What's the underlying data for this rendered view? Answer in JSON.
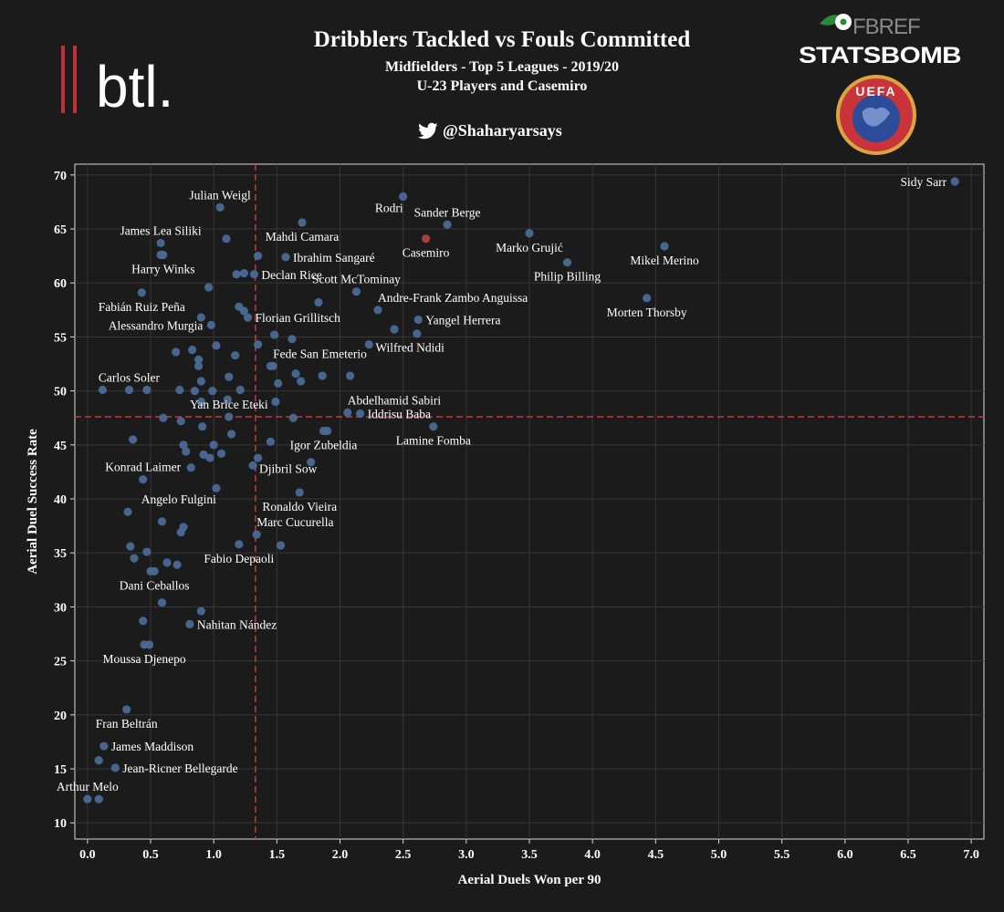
{
  "header": {
    "title": "Dribblers Tackled vs Fouls Committed",
    "subtitle1": "Midfielders - Top 5 Leagues - 2019/20",
    "subtitle2": "U-23 Players and Casemiro",
    "twitter_handle": "@Shaharyarsays"
  },
  "logos": {
    "btl": "btl.",
    "fbref": "FBREF",
    "statsbomb": "STATSBOMB",
    "uefa": "UEFA"
  },
  "colors": {
    "background": "#1b1b1b",
    "point": "#4a6a96",
    "highlight": "#b04040",
    "reference_line": "#b8383f",
    "grid": "#363636"
  },
  "chart_data": {
    "type": "scatter",
    "xlabel": "Aerial Duels Won per 90",
    "ylabel": "Aerial Duel Success Rate",
    "xlim": [
      -0.1,
      7.1
    ],
    "ylim": [
      8.5,
      71
    ],
    "xticks": [
      "0.0",
      "0.5",
      "1.0",
      "1.5",
      "2.0",
      "2.5",
      "3.0",
      "3.5",
      "4.0",
      "4.5",
      "5.0",
      "5.5",
      "6.0",
      "6.5",
      "7.0"
    ],
    "yticks": [
      "10",
      "15",
      "20",
      "25",
      "30",
      "35",
      "40",
      "45",
      "50",
      "55",
      "60",
      "65",
      "70"
    ],
    "grid": true,
    "reference_lines": {
      "x": 1.33,
      "y": 47.6
    },
    "labeled_points": [
      {
        "name": "Sidy Sarr",
        "x": 6.87,
        "y": 69.4,
        "label_pos": "left"
      },
      {
        "name": "Rodri",
        "x": 2.5,
        "y": 68.0,
        "label_pos": "below-left"
      },
      {
        "name": "Sander Berge",
        "x": 2.85,
        "y": 65.4,
        "label_pos": "above"
      },
      {
        "name": "Marko Grujić",
        "x": 3.5,
        "y": 64.6,
        "label_pos": "below"
      },
      {
        "name": "Julian Weigl",
        "x": 1.05,
        "y": 67.0,
        "label_pos": "above"
      },
      {
        "name": "James Lea Siliki",
        "x": 0.58,
        "y": 63.7,
        "label_pos": "above"
      },
      {
        "name": "Mahdi Camara",
        "x": 1.7,
        "y": 65.6,
        "label_pos": "below"
      },
      {
        "name": "Casemiro",
        "x": 2.68,
        "y": 64.1,
        "label_pos": "below",
        "highlight": true
      },
      {
        "name": "Mikel Merino",
        "x": 4.57,
        "y": 63.4,
        "label_pos": "below"
      },
      {
        "name": "Ibrahim Sangaré",
        "x": 1.57,
        "y": 62.4,
        "label_pos": "right"
      },
      {
        "name": "Philip Billing",
        "x": 3.8,
        "y": 61.9,
        "label_pos": "below"
      },
      {
        "name": "Harry Winks",
        "x": 0.6,
        "y": 62.6,
        "label_pos": "below"
      },
      {
        "name": "Declan Rice",
        "x": 1.32,
        "y": 60.8,
        "label_pos": "right"
      },
      {
        "name": "Scott McTominay",
        "x": 2.13,
        "y": 59.2,
        "label_pos": "above"
      },
      {
        "name": "Fabián Ruiz Peña",
        "x": 0.43,
        "y": 59.1,
        "label_pos": "below"
      },
      {
        "name": "Andre-Frank Zambo Anguissa",
        "x": 2.3,
        "y": 57.5,
        "label_pos": "above-right"
      },
      {
        "name": "Morten Thorsby",
        "x": 4.43,
        "y": 58.6,
        "label_pos": "below"
      },
      {
        "name": "Florian Grillitsch",
        "x": 1.27,
        "y": 56.8,
        "label_pos": "right"
      },
      {
        "name": "Yangel Herrera",
        "x": 2.62,
        "y": 56.6,
        "label_pos": "right"
      },
      {
        "name": "Alessandro Murgia",
        "x": 0.98,
        "y": 56.1,
        "label_pos": "left"
      },
      {
        "name": "Wilfred Ndidi",
        "x": 2.23,
        "y": 54.3,
        "label_pos": "below-right"
      },
      {
        "name": "Fede San Emeterio",
        "x": 1.47,
        "y": 52.3,
        "label_pos": "above-right"
      },
      {
        "name": "Carlos Soler",
        "x": 0.33,
        "y": 50.1,
        "label_pos": "above"
      },
      {
        "name": "Abdelhamid Sabiri",
        "x": 2.06,
        "y": 48.0,
        "label_pos": "above-right"
      },
      {
        "name": "Iddrisu Baba",
        "x": 2.16,
        "y": 47.9,
        "label_pos": "right"
      },
      {
        "name": "Yan Brice Eteki",
        "x": 1.12,
        "y": 47.6,
        "label_pos": "above"
      },
      {
        "name": "Lamine Fomba",
        "x": 2.74,
        "y": 46.7,
        "label_pos": "below"
      },
      {
        "name": "Igor Zubeldia",
        "x": 1.87,
        "y": 46.3,
        "label_pos": "below"
      },
      {
        "name": "Konrad Laimer",
        "x": 0.44,
        "y": 41.8,
        "label_pos": "above"
      },
      {
        "name": "Djibril Sow",
        "x": 1.31,
        "y": 43.1,
        "label_pos": "below-right"
      },
      {
        "name": "Angelo Fulgini",
        "x": 1.02,
        "y": 41.0,
        "label_pos": "below-left"
      },
      {
        "name": "Ronaldo Vieira",
        "x": 1.68,
        "y": 40.6,
        "label_pos": "below"
      },
      {
        "name": "Marc Cucurella",
        "x": 1.34,
        "y": 36.7,
        "label_pos": "above-right"
      },
      {
        "name": "Fabio Depaoli",
        "x": 1.2,
        "y": 35.8,
        "label_pos": "below"
      },
      {
        "name": "Dani Ceballos",
        "x": 0.53,
        "y": 33.3,
        "label_pos": "below"
      },
      {
        "name": "Nahitan Nández",
        "x": 0.81,
        "y": 28.4,
        "label_pos": "right"
      },
      {
        "name": "Moussa Djenepo",
        "x": 0.45,
        "y": 26.5,
        "label_pos": "below"
      },
      {
        "name": "Fran Beltrán",
        "x": 0.31,
        "y": 20.5,
        "label_pos": "below"
      },
      {
        "name": "James Maddison",
        "x": 0.13,
        "y": 17.1,
        "label_pos": "right"
      },
      {
        "name": "Jean-Ricner Bellegarde",
        "x": 0.22,
        "y": 15.1,
        "label_pos": "right"
      },
      {
        "name": "Arthur Melo",
        "x": 0.0,
        "y": 12.2,
        "label_pos": "above"
      }
    ],
    "unlabeled_points": [
      [
        0.58,
        62.6
      ],
      [
        1.1,
        64.1
      ],
      [
        1.35,
        62.5
      ],
      [
        1.18,
        60.8
      ],
      [
        1.24,
        60.9
      ],
      [
        0.96,
        59.6
      ],
      [
        1.83,
        58.2
      ],
      [
        1.2,
        57.8
      ],
      [
        1.24,
        57.4
      ],
      [
        0.9,
        56.8
      ],
      [
        2.43,
        55.7
      ],
      [
        2.61,
        55.3
      ],
      [
        1.48,
        55.2
      ],
      [
        1.35,
        54.3
      ],
      [
        1.62,
        54.8
      ],
      [
        1.02,
        54.2
      ],
      [
        0.7,
        53.6
      ],
      [
        0.83,
        53.8
      ],
      [
        0.88,
        52.9
      ],
      [
        1.17,
        53.3
      ],
      [
        0.88,
        52.3
      ],
      [
        1.45,
        52.3
      ],
      [
        1.65,
        51.6
      ],
      [
        1.86,
        51.4
      ],
      [
        1.12,
        51.3
      ],
      [
        1.51,
        50.7
      ],
      [
        0.9,
        50.9
      ],
      [
        1.69,
        50.9
      ],
      [
        0.73,
        50.1
      ],
      [
        0.85,
        50.0
      ],
      [
        0.99,
        50.0
      ],
      [
        1.21,
        50.1
      ],
      [
        2.08,
        51.4
      ],
      [
        0.47,
        50.1
      ],
      [
        0.12,
        50.1
      ],
      [
        0.6,
        47.5
      ],
      [
        0.74,
        47.2
      ],
      [
        1.49,
        49.0
      ],
      [
        0.9,
        49.0
      ],
      [
        1.11,
        49.2
      ],
      [
        0.91,
        46.7
      ],
      [
        1.14,
        46.0
      ],
      [
        1.63,
        47.5
      ],
      [
        1.9,
        46.3
      ],
      [
        0.36,
        45.5
      ],
      [
        0.76,
        45.0
      ],
      [
        1.0,
        45.0
      ],
      [
        1.45,
        45.3
      ],
      [
        0.78,
        44.4
      ],
      [
        0.92,
        44.1
      ],
      [
        0.97,
        43.8
      ],
      [
        1.06,
        44.2
      ],
      [
        1.35,
        43.8
      ],
      [
        1.77,
        43.4
      ],
      [
        0.82,
        42.9
      ],
      [
        0.32,
        38.8
      ],
      [
        0.59,
        37.9
      ],
      [
        0.76,
        37.4
      ],
      [
        0.74,
        36.9
      ],
      [
        0.34,
        35.6
      ],
      [
        0.47,
        35.1
      ],
      [
        0.37,
        34.5
      ],
      [
        0.63,
        34.1
      ],
      [
        0.71,
        33.9
      ],
      [
        0.5,
        33.3
      ],
      [
        0.59,
        30.4
      ],
      [
        0.9,
        29.6
      ],
      [
        0.44,
        28.7
      ],
      [
        0.49,
        26.5
      ],
      [
        1.53,
        35.7
      ],
      [
        0.09,
        15.8
      ],
      [
        0.09,
        12.2
      ]
    ]
  }
}
